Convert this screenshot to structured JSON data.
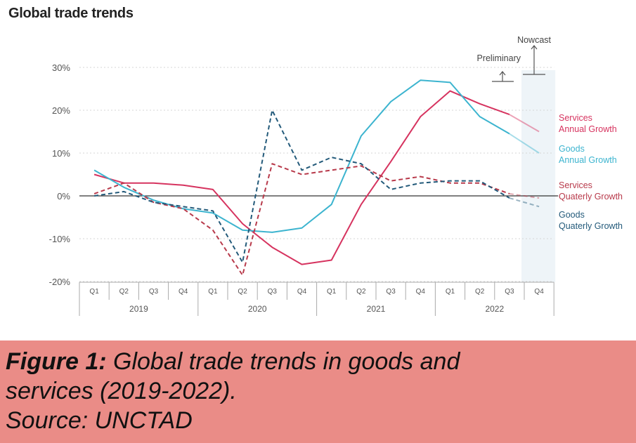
{
  "chart_data": {
    "type": "line",
    "title": "Global trade trends",
    "quarters": [
      "Q1",
      "Q2",
      "Q3",
      "Q4",
      "Q1",
      "Q2",
      "Q3",
      "Q4",
      "Q1",
      "Q2",
      "Q3",
      "Q4",
      "Q1",
      "Q2",
      "Q3",
      "Q4"
    ],
    "years": [
      "2019",
      "2020",
      "2021",
      "2022"
    ],
    "yticks": [
      "30%",
      "20%",
      "10%",
      "0%",
      "-10%",
      "-20%"
    ],
    "ylim": [
      -20,
      30
    ],
    "series": [
      {
        "name": "Services Annual Growth",
        "label_lines": [
          "Services",
          "Annual Growth"
        ],
        "color": "#d6335f",
        "dash": false,
        "values": [
          5,
          3,
          3,
          2.5,
          1.5,
          -6.5,
          -12,
          -16,
          -15,
          -2,
          8,
          18.5,
          24.5,
          21.5,
          19,
          15
        ]
      },
      {
        "name": "Goods Annual Growth",
        "label_lines": [
          "Goods",
          "Annual Growth"
        ],
        "color": "#3cb4cf",
        "dash": false,
        "values": [
          6,
          2,
          -1,
          -3,
          -4,
          -8,
          -8.5,
          -7.5,
          -2,
          14,
          22,
          27,
          26.5,
          18.5,
          14.5,
          10
        ]
      },
      {
        "name": "Services Quaterly Growth",
        "label_lines": [
          "Services",
          "Quaterly Growth"
        ],
        "color": "#b83a4b",
        "dash": true,
        "values": [
          0.5,
          3,
          -1.5,
          -3,
          -8,
          -18.5,
          7.5,
          5,
          6,
          7,
          3.5,
          4.5,
          3,
          3,
          0.5,
          -0.5
        ]
      },
      {
        "name": "Goods Quaterly Growth",
        "label_lines": [
          "Goods",
          "Quaterly Growth"
        ],
        "color": "#235a7a",
        "dash": true,
        "values": [
          0,
          1,
          -1.5,
          -2.5,
          -3.5,
          -15.5,
          20,
          6,
          9,
          7.5,
          1.5,
          3,
          3.5,
          3.5,
          -0.5,
          -2.5
        ]
      }
    ],
    "annotations": {
      "preliminary": "Preliminary",
      "nowcast": "Nowcast"
    },
    "grid": "dashed horizontal",
    "legend": "right, inline labels"
  },
  "caption": {
    "label": "Figure 1:",
    "line1": " Global trade trends in goods and",
    "line2": "services (2019-2022).",
    "line3": "Source: UNCTAD"
  }
}
